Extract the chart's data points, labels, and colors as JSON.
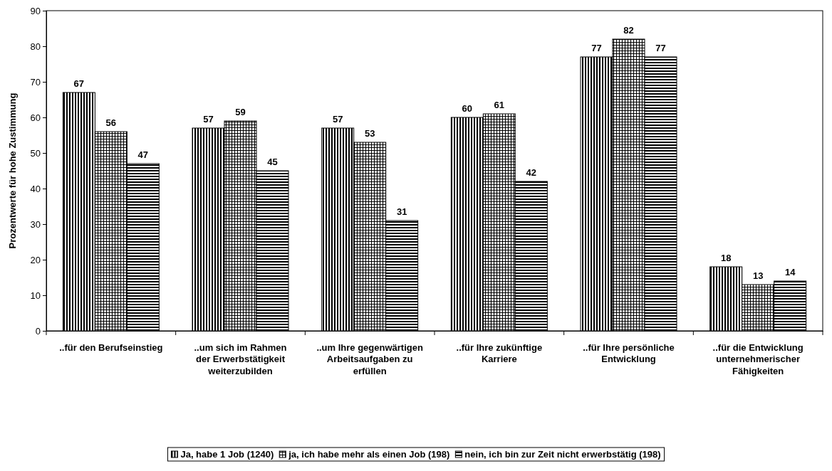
{
  "chart_data": {
    "type": "bar",
    "ylabel": "Prozentwerte für hohe Zustimmung",
    "categories": [
      "..für den Berufseinstieg",
      "..um sich im Rahmen der Erwerbstätigkeit weiterzubilden",
      "..um Ihre gegenwärtigen Arbeitsaufgaben zu erfüllen",
      "..für Ihre zukünftige Karriere",
      "..für Ihre persönliche Entwicklung",
      "..für die Entwicklung unternehmerischer Fähigkeiten"
    ],
    "series": [
      {
        "name": "Ja, habe 1 Job (1240)",
        "color": "#000000",
        "values": [
          67,
          57,
          57,
          60,
          77,
          18
        ]
      },
      {
        "name": "ja, ich habe mehr als einen Job (198)",
        "color": "#000000",
        "values": [
          56,
          59,
          53,
          61,
          82,
          13
        ]
      },
      {
        "name": "nein, ich bin zur Zeit nicht erwerbstätig (198)",
        "color": "#000000",
        "values": [
          47,
          45,
          31,
          42,
          77,
          14
        ]
      }
    ],
    "ylim": [
      0,
      90
    ],
    "yticks": [
      0,
      10,
      20,
      30,
      40,
      50,
      60,
      70,
      80,
      90
    ],
    "grid": false,
    "legend": "bottom",
    "data_labels": true
  }
}
